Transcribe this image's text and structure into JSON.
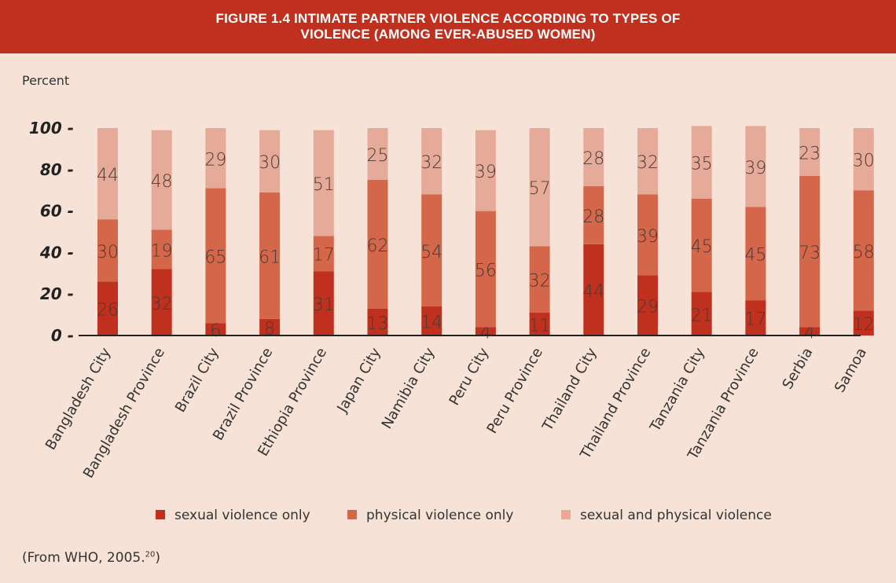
{
  "title": {
    "line1": "FIGURE 1.4 INTIMATE PARTNER VIOLENCE ACCORDING TO TYPES OF",
    "line2": "VIOLENCE (AMONG EVER-ABUSED WOMEN)"
  },
  "source": {
    "text": "(From WHO, 2005.",
    "superscript": "20",
    "closing": ")"
  },
  "colors": {
    "background": "#f6e2d6",
    "title_bar": "#c0301e",
    "sexual": "#c0301e",
    "physical": "#d4664a",
    "both": "#e6aa98"
  },
  "chart_data": {
    "type": "bar",
    "stacked": true,
    "ylabel": "Percent",
    "ylim": [
      0,
      100
    ],
    "yticks": [
      0,
      20,
      40,
      60,
      80,
      100
    ],
    "categories": [
      "Bangladesh City",
      "Bangladesh Province",
      "Brazil City",
      "Brazil Province",
      "Ethiopia Province",
      "Japan City",
      "Namibia City",
      "Peru City",
      "Peru Province",
      "Thailand City",
      "Thailand Province",
      "Tanzania City",
      "Tanzania Province",
      "Serbia",
      "Samoa"
    ],
    "series": [
      {
        "name": "sexual violence only",
        "color": "#c0301e",
        "values": [
          26,
          32,
          6,
          8,
          31,
          13,
          14,
          4,
          11,
          44,
          29,
          21,
          17,
          4,
          12
        ]
      },
      {
        "name": "physical violence only",
        "color": "#d4664a",
        "values": [
          30,
          19,
          65,
          61,
          17,
          62,
          54,
          56,
          32,
          28,
          39,
          45,
          45,
          73,
          58
        ]
      },
      {
        "name": "sexual and physical violence",
        "color": "#e6aa98",
        "values": [
          44,
          48,
          29,
          30,
          51,
          25,
          32,
          39,
          57,
          28,
          32,
          35,
          39,
          23,
          30
        ]
      }
    ],
    "legend_position": "bottom"
  }
}
